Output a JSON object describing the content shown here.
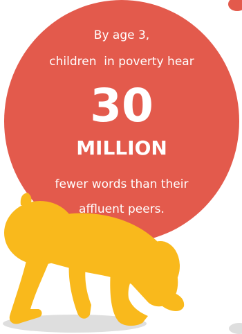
{
  "infographic": {
    "line1": "By age 3,",
    "line2": "children  in poverty hear",
    "number": "30",
    "unit": "MILLION",
    "line3": "fewer words than their",
    "line4": "affluent peers."
  },
  "colors": {
    "circle": "#e35a4c",
    "baby": "#f9b91c",
    "shadow": "#dedede"
  },
  "icons": {
    "baby": "crawling-baby-icon"
  }
}
